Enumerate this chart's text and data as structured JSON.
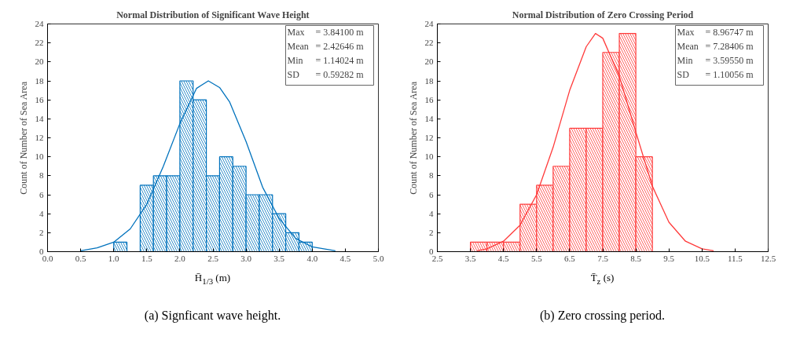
{
  "chart_data": [
    {
      "type": "histogram",
      "title": "Normal Distribution of Significant Wave Height",
      "xlabel": "H̄$_{1/3}$ (m)",
      "ylabel": "Count of Number of Sea Area",
      "bins": [
        1.0,
        1.2,
        1.4,
        1.6,
        1.8,
        2.0,
        2.2,
        2.4,
        2.6,
        2.8,
        3.0,
        3.2,
        3.4,
        3.6,
        3.8,
        4.0
      ],
      "series": [
        {
          "color": "#0072bd",
          "values": [
            1,
            0,
            7,
            8,
            8,
            18,
            16,
            8,
            10,
            9,
            6,
            6,
            4,
            2,
            1
          ]
        },
        {
          "type": "line",
          "color": "#0072bd",
          "x": [
            0.5,
            0.75,
            1.0,
            1.25,
            1.5,
            1.75,
            2.0,
            2.25,
            2.43,
            2.6,
            2.75,
            3.0,
            3.25,
            3.5,
            3.75,
            4.0,
            4.35
          ],
          "values": [
            0.1,
            0.4,
            1.0,
            2.4,
            5.0,
            9.0,
            13.5,
            17.2,
            18,
            17.3,
            15.8,
            11.6,
            6.8,
            3.5,
            1.4,
            0.5,
            0.1
          ]
        }
      ],
      "xlim": [
        0,
        5
      ],
      "xticks": [
        {
          "value": 0,
          "label": "0.0"
        },
        0.5,
        {
          "value": 1,
          "label": "1.0"
        },
        1.5,
        {
          "value": 2,
          "label": "2.0"
        },
        2.5,
        {
          "value": 3,
          "label": "3.0"
        },
        3.5,
        {
          "value": 4,
          "label": "4.0"
        },
        4.5,
        {
          "value": 5,
          "label": "5.0"
        }
      ],
      "ylim": [
        0,
        24
      ],
      "yticks": [
        0,
        2,
        4,
        6,
        8,
        10,
        12,
        14,
        16,
        18,
        20,
        22,
        24
      ],
      "grid": false,
      "annotations": [
        "Max = 3.84100 m",
        "Mean = 2.42646 m",
        "Min = 1.14024 m",
        "SD = 0.59282 m",
        "(a) Signficant wave height."
      ]
    },
    {
      "type": "histogram",
      "title": "Normal Distribution of Zero Crossing Period",
      "xlabel": "T̄$_{z}$ (s)",
      "ylabel": "Count of Number of Sea Area",
      "bins": [
        3.5,
        4.0,
        4.5,
        5.0,
        5.5,
        6.0,
        6.5,
        7.0,
        7.5,
        8.0,
        8.5,
        9.0
      ],
      "series": [
        {
          "color": "#ff3b3b",
          "values": [
            1,
            1,
            1,
            5,
            7,
            9,
            13,
            13,
            21,
            23,
            10
          ]
        },
        {
          "type": "line",
          "color": "#ff3b3b",
          "x": [
            3.7,
            4.0,
            4.5,
            5.0,
            5.5,
            6.0,
            6.5,
            7.0,
            7.28,
            7.5,
            8.0,
            8.5,
            9.0,
            9.5,
            10.0,
            10.5,
            10.85
          ],
          "values": [
            0.1,
            0.3,
            1.1,
            2.8,
            6.0,
            11.0,
            17.0,
            21.6,
            23,
            22.5,
            18.5,
            12.6,
            6.9,
            3.1,
            1.1,
            0.3,
            0.1
          ]
        }
      ],
      "xlim": [
        2.5,
        12.5
      ],
      "xticks": [
        2.5,
        3.5,
        4.5,
        5.5,
        6.5,
        7.5,
        8.5,
        9.5,
        10.5,
        11.5,
        12.5
      ],
      "ylim": [
        0,
        24
      ],
      "yticks": [
        0,
        2,
        4,
        6,
        8,
        10,
        12,
        14,
        16,
        18,
        20,
        22,
        24
      ],
      "grid": false,
      "annotations": [
        "Max = 8.96747 m",
        "Mean = 7.28406 m",
        "Min = 3.59550 m",
        "SD = 1.10056 m",
        "(b) Zero crossing period."
      ]
    }
  ]
}
